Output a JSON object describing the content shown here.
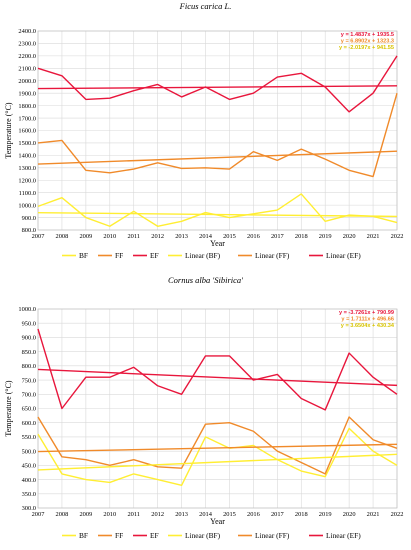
{
  "chart_data": [
    {
      "type": "line",
      "title": "Ficus carica L.",
      "xlabel": "Year",
      "ylabel": "Temperature (°C)",
      "categories": [
        "2007",
        "2008",
        "2009",
        "2010",
        "2011",
        "2012",
        "2013",
        "2014",
        "2015",
        "2016",
        "2017",
        "2018",
        "2019",
        "2020",
        "2021",
        "2022"
      ],
      "ylim": [
        800,
        2400
      ],
      "ytick_step": 100,
      "ytick_labels": [
        "800.0",
        "900.0",
        "1000.0",
        "1100.0",
        "1200.0",
        "1300.0",
        "1400.0",
        "1500.0",
        "1600.0",
        "1700.0",
        "1800.0",
        "1900.0",
        "2000.0",
        "2100.0",
        "2200.0",
        "2300.0",
        "2400.0"
      ],
      "grid": true,
      "legend_position": "bottom",
      "series": [
        {
          "name": "BF",
          "color": "#ffee33",
          "values": [
            990,
            1060,
            900,
            830,
            950,
            830,
            870,
            940,
            900,
            930,
            960,
            1090,
            870,
            920,
            910,
            860
          ]
        },
        {
          "name": "FF",
          "color": "#f08a2a",
          "values": [
            1500,
            1520,
            1280,
            1260,
            1290,
            1340,
            1295,
            1300,
            1290,
            1430,
            1360,
            1450,
            1370,
            1280,
            1230,
            1900
          ]
        },
        {
          "name": "EF",
          "color": "#e8163c",
          "values": [
            2100,
            2040,
            1850,
            1860,
            1920,
            1970,
            1870,
            1950,
            1850,
            1900,
            2030,
            2060,
            1950,
            1750,
            1900,
            2200
          ]
        }
      ],
      "trendlines": [
        {
          "name": "Linear (BF)",
          "color": "#ffee33",
          "slope": -2.0197,
          "intercept": 941.55,
          "equation": "y = -2.0197x + 941.55"
        },
        {
          "name": "Linear (FF)",
          "color": "#f08a2a",
          "slope": 6.8902,
          "intercept": 1323.3,
          "equation": "y = 6.8902x + 1323.3"
        },
        {
          "name": "Linear (EF)",
          "color": "#e8163c",
          "slope": 1.4837,
          "intercept": 1935.5,
          "equation": "y = 1.4837x + 1935.5"
        }
      ]
    },
    {
      "type": "line",
      "title": "Cornus alba 'Sibirica'",
      "xlabel": "Year",
      "ylabel": "Temperature (°C)",
      "categories": [
        "2007",
        "2008",
        "2009",
        "2010",
        "2011",
        "2012",
        "2013",
        "2014",
        "2015",
        "2016",
        "2017",
        "2018",
        "2019",
        "2020",
        "2021",
        "2022"
      ],
      "ylim": [
        300,
        1000
      ],
      "ytick_step": 50,
      "ytick_labels": [
        "300.0",
        "350.0",
        "400.0",
        "450.0",
        "500.0",
        "550.0",
        "600.0",
        "650.0",
        "700.0",
        "750.0",
        "800.0",
        "850.0",
        "900.0",
        "950.0",
        "1000.0"
      ],
      "grid": true,
      "legend_position": "bottom",
      "series": [
        {
          "name": "BF",
          "color": "#ffee33",
          "values": [
            560,
            420,
            400,
            390,
            420,
            400,
            380,
            550,
            510,
            520,
            470,
            430,
            410,
            580,
            500,
            450
          ]
        },
        {
          "name": "FF",
          "color": "#f08a2a",
          "values": [
            620,
            480,
            470,
            450,
            470,
            445,
            440,
            595,
            600,
            570,
            500,
            460,
            420,
            620,
            540,
            510
          ]
        },
        {
          "name": "EF",
          "color": "#e8163c",
          "values": [
            930,
            650,
            760,
            760,
            795,
            730,
            700,
            835,
            835,
            750,
            770,
            685,
            645,
            845,
            760,
            700
          ]
        }
      ],
      "trendlines": [
        {
          "name": "Linear (BF)",
          "color": "#ffee33",
          "slope": 3.6504,
          "intercept": 430.34,
          "equation": "y = 3.6504x + 430.34"
        },
        {
          "name": "Linear (FF)",
          "color": "#f08a2a",
          "slope": 1.7111,
          "intercept": 496.66,
          "equation": "y = 1.7111x + 496.66"
        },
        {
          "name": "Linear (EF)",
          "color": "#e8163c",
          "slope": -3.7261,
          "intercept": 790.99,
          "equation": "y = -3.7261x + 790.99"
        }
      ]
    }
  ]
}
